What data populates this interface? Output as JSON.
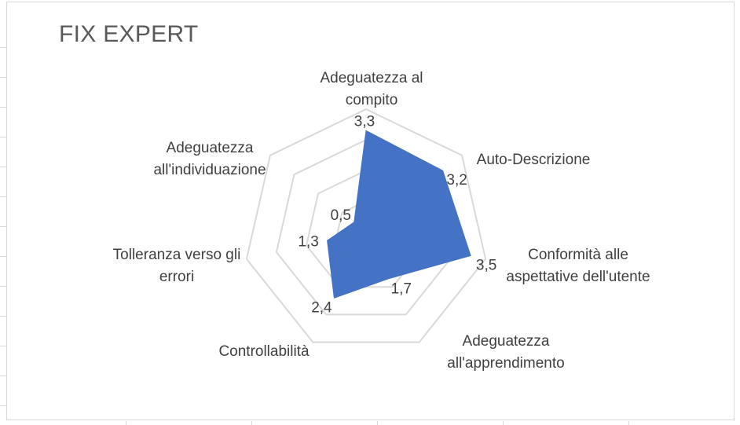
{
  "chart_data": {
    "type": "radar",
    "title": "FIX EXPERT",
    "categories": [
      [
        "Adeguatezza al",
        "compito"
      ],
      [
        "Auto-Descrizione"
      ],
      [
        "Conformità alle",
        "aspettative dell'utente"
      ],
      [
        "Adeguatezza",
        "all'apprendimento"
      ],
      [
        "Controllabilità"
      ],
      [
        "Tolleranza verso gli",
        "errori"
      ],
      [
        "Adeguatezza",
        "all'individuazione"
      ]
    ],
    "series": [
      {
        "values": [
          3.3,
          3.2,
          3.5,
          1.7,
          2.4,
          1.3,
          0.5
        ],
        "value_labels": [
          "3,3",
          "3,2",
          "3,5",
          "1,7",
          "2,4",
          "1,3",
          "0,5"
        ]
      }
    ],
    "rlim": [
      0,
      4
    ],
    "grid": true,
    "legend": "none",
    "colors": {
      "fill": "#4472C4",
      "grid": "#d9d9d9",
      "text": "#404040",
      "title": "#595959"
    }
  }
}
